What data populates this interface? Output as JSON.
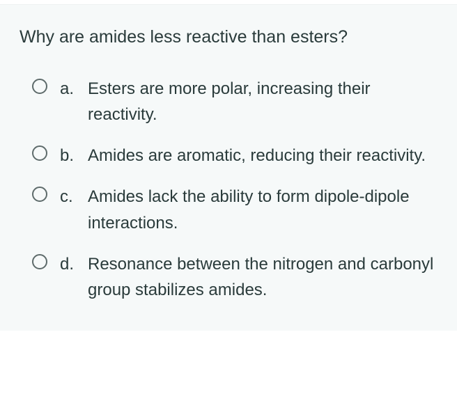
{
  "card": {
    "background_color": "#f6f9f9",
    "text_color": "#2a3b3b",
    "radio_border_color": "#5e6b6b",
    "question_fontsize": 25,
    "option_fontsize": 24
  },
  "question": "Why are amides less reactive than esters?",
  "options": [
    {
      "letter": "a.",
      "text": "Esters are more polar, increasing their reactivity."
    },
    {
      "letter": "b.",
      "text": "Amides are aromatic, reducing their reactivity."
    },
    {
      "letter": "c.",
      "text": "Amides lack the ability to form dipole-dipole interactions."
    },
    {
      "letter": "d.",
      "text": "Resonance between the nitrogen and carbonyl group stabilizes amides."
    }
  ]
}
